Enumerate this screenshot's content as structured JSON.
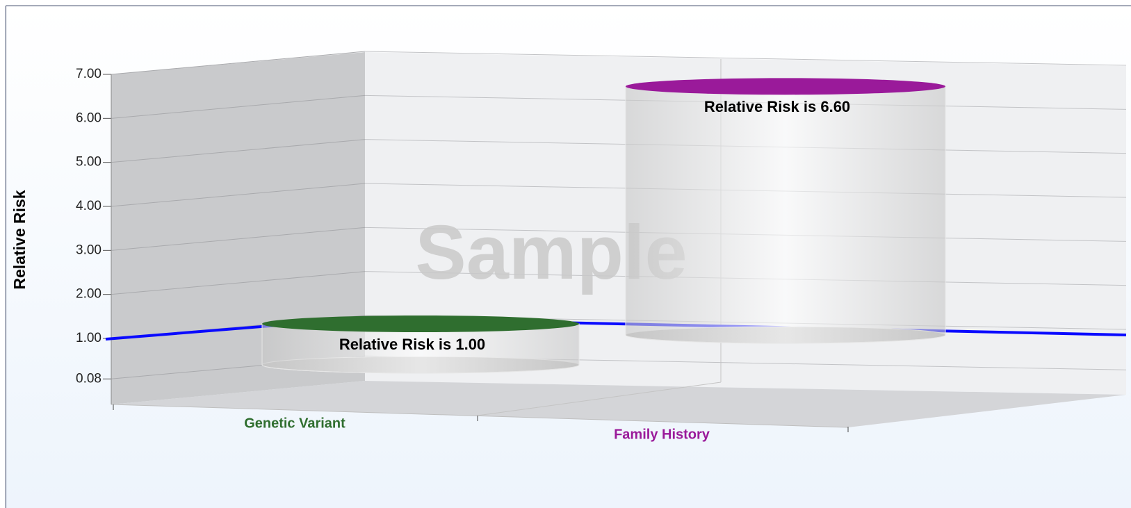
{
  "chart_data": {
    "type": "bar",
    "y_axis_label": "Relative Risk",
    "watermark": "Sample",
    "categories": [
      "Genetic Variant",
      "Family History"
    ],
    "values": [
      1.0,
      6.6
    ],
    "value_labels": [
      "Relative Risk is 1.00",
      "Relative Risk is 6.60"
    ],
    "colors": [
      "#2f6e2f",
      "#9a1a9a"
    ],
    "ylim": [
      -0.5,
      7
    ],
    "yticks": [
      {
        "value": 0.08,
        "label": "0.08"
      },
      {
        "value": 1,
        "label": "1.00"
      },
      {
        "value": 2,
        "label": "2.00"
      },
      {
        "value": 3,
        "label": "3.00"
      },
      {
        "value": 4,
        "label": "4.00"
      },
      {
        "value": 5,
        "label": "5.00"
      },
      {
        "value": 6,
        "label": "6.00"
      },
      {
        "value": 7,
        "label": "7.00"
      }
    ],
    "reference_line": {
      "value": 1,
      "color": "#0a0aff"
    },
    "grid": true
  }
}
